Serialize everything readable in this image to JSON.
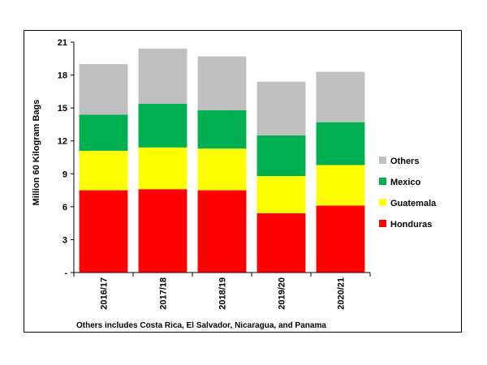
{
  "chart_data": {
    "type": "bar",
    "stacked": true,
    "title": "",
    "xlabel": "",
    "ylabel": "Million 60 Kilogram Bags",
    "categories": [
      "2016/17",
      "2017/18",
      "2018/19",
      "2019/20",
      "2020/21"
    ],
    "series": [
      {
        "name": "Honduras",
        "color": "#ff0000",
        "values": [
          7.5,
          7.6,
          7.5,
          5.4,
          6.1
        ]
      },
      {
        "name": "Guatemala",
        "color": "#ffff00",
        "values": [
          3.6,
          3.8,
          3.8,
          3.4,
          3.7
        ]
      },
      {
        "name": "Mexico",
        "color": "#00b050",
        "values": [
          3.3,
          4.0,
          3.5,
          3.7,
          3.9
        ]
      },
      {
        "name": "Others",
        "color": "#bfbfbf",
        "values": [
          4.6,
          5.0,
          4.9,
          4.9,
          4.6
        ]
      }
    ],
    "ylim": [
      0,
      21
    ],
    "yticks": [
      0,
      3,
      6,
      9,
      12,
      15,
      18,
      21
    ],
    "ytick_labels": [
      "-",
      "3",
      "6",
      "9",
      "12",
      "15",
      "18",
      "21"
    ],
    "grid": false,
    "legend_position": "right",
    "annotation": "Others includes Costa Rica, El Salvador, Nicaragua, and Panama"
  }
}
